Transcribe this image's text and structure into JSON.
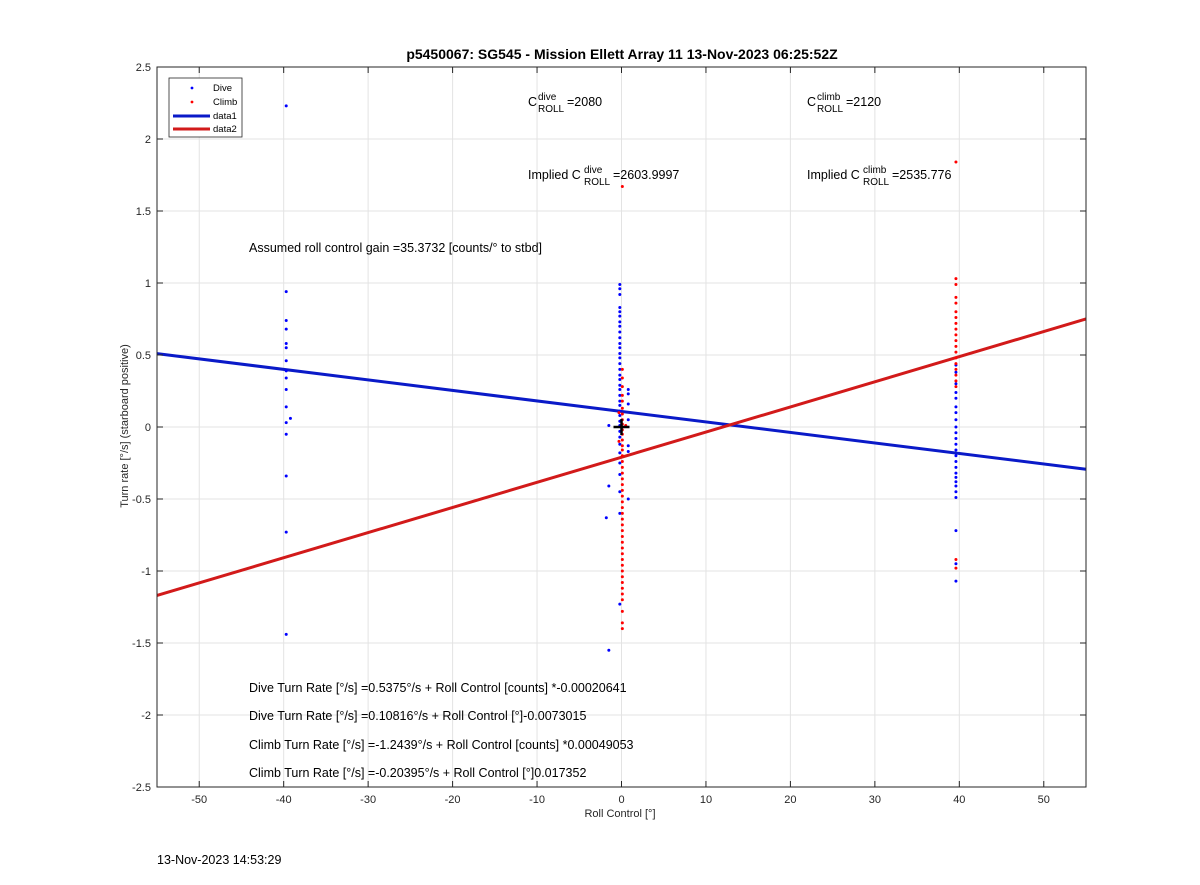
{
  "chart_data": {
    "type": "scatter",
    "title": "p5450067: SG545 - Mission Ellett Array 11 13-Nov-2023 06:25:52Z",
    "xlabel": "Roll Control [°]",
    "ylabel": "Turn rate [°/s] (starboard positive)",
    "xlim": [
      -55,
      55
    ],
    "ylim": [
      -2.5,
      2.5
    ],
    "xticks": [
      -50,
      -40,
      -30,
      -20,
      -10,
      0,
      10,
      20,
      30,
      40,
      50
    ],
    "xtick_labels": [
      "-50",
      "-40",
      "-30",
      "-20",
      "-10",
      "0",
      "10",
      "20",
      "30",
      "40",
      "50"
    ],
    "yticks": [
      -2.5,
      -2,
      -1.5,
      -1,
      -0.5,
      0,
      0.5,
      1,
      1.5,
      2,
      2.5
    ],
    "ytick_labels": [
      "-2.5",
      "-2",
      "-1.5",
      "-1",
      "-0.5",
      "0",
      "0.5",
      "1",
      "1.5",
      "2",
      "2.5"
    ],
    "grid": true,
    "legend_placement": "top-left",
    "legend": [
      {
        "label": "Dive",
        "marker": "dot",
        "color": "#0000ff"
      },
      {
        "label": "Climb",
        "marker": "dot",
        "color": "#ff0000"
      },
      {
        "label": "data1",
        "marker": "line",
        "color": "#0a1ac8"
      },
      {
        "label": "data2",
        "marker": "line",
        "color": "#d21a1a"
      }
    ],
    "series": [
      {
        "name": "Dive",
        "kind": "points",
        "color": "#0000ff",
        "points": [
          [
            -39.7,
            2.23
          ],
          [
            -39.7,
            0.94
          ],
          [
            -39.7,
            0.74
          ],
          [
            -39.7,
            0.68
          ],
          [
            -39.7,
            0.58
          ],
          [
            -39.7,
            0.55
          ],
          [
            -39.7,
            0.46
          ],
          [
            -39.7,
            0.39
          ],
          [
            -39.7,
            0.34
          ],
          [
            -39.7,
            0.26
          ],
          [
            -39.7,
            0.14
          ],
          [
            -39.2,
            0.06
          ],
          [
            -39.7,
            0.03
          ],
          [
            -39.7,
            -0.05
          ],
          [
            -39.7,
            -0.34
          ],
          [
            -39.7,
            -0.73
          ],
          [
            -39.7,
            -1.44
          ],
          [
            -0.2,
            0.99
          ],
          [
            -0.2,
            0.96
          ],
          [
            -0.2,
            0.92
          ],
          [
            -0.2,
            0.83
          ],
          [
            -0.2,
            0.8
          ],
          [
            -0.2,
            0.77
          ],
          [
            -0.2,
            0.73
          ],
          [
            -0.2,
            0.7
          ],
          [
            -0.2,
            0.66
          ],
          [
            -0.2,
            0.62
          ],
          [
            -0.2,
            0.58
          ],
          [
            -0.2,
            0.55
          ],
          [
            -0.2,
            0.51
          ],
          [
            -0.2,
            0.48
          ],
          [
            -0.2,
            0.44
          ],
          [
            -0.2,
            0.4
          ],
          [
            -0.2,
            0.36
          ],
          [
            -0.2,
            0.33
          ],
          [
            -0.2,
            0.29
          ],
          [
            -0.2,
            0.26
          ],
          [
            -0.2,
            0.22
          ],
          [
            -0.2,
            0.18
          ],
          [
            -0.2,
            0.15
          ],
          [
            -0.2,
            0.11
          ],
          [
            -0.2,
            0.08
          ],
          [
            -0.2,
            0.04
          ],
          [
            -0.2,
            0.01
          ],
          [
            -0.2,
            -0.03
          ],
          [
            -0.2,
            -0.07
          ],
          [
            -0.2,
            -0.12
          ],
          [
            -0.2,
            -0.18
          ],
          [
            -0.2,
            -0.25
          ],
          [
            -0.2,
            -0.33
          ],
          [
            -0.2,
            -0.45
          ],
          [
            -0.2,
            -0.6
          ],
          [
            -0.2,
            -1.23
          ],
          [
            -1.5,
            0.01
          ],
          [
            -1.5,
            -0.41
          ],
          [
            -1.8,
            -0.63
          ],
          [
            -1.5,
            -1.55
          ],
          [
            0.8,
            0.26
          ],
          [
            0.8,
            0.23
          ],
          [
            0.8,
            0.16
          ],
          [
            0.8,
            -0.13
          ],
          [
            0.8,
            -0.17
          ],
          [
            0.8,
            -0.5
          ],
          [
            0.8,
            0.05
          ],
          [
            39.6,
            0.43
          ],
          [
            39.6,
            0.38
          ],
          [
            39.6,
            0.3
          ],
          [
            39.6,
            0.24
          ],
          [
            39.6,
            0.2
          ],
          [
            39.6,
            0.14
          ],
          [
            39.6,
            0.1
          ],
          [
            39.6,
            0.05
          ],
          [
            39.6,
            0.0
          ],
          [
            39.6,
            -0.04
          ],
          [
            39.6,
            -0.08
          ],
          [
            39.6,
            -0.12
          ],
          [
            39.6,
            -0.16
          ],
          [
            39.6,
            -0.2
          ],
          [
            39.6,
            -0.24
          ],
          [
            39.6,
            -0.28
          ],
          [
            39.6,
            -0.32
          ],
          [
            39.6,
            -0.35
          ],
          [
            39.6,
            -0.38
          ],
          [
            39.6,
            -0.41
          ],
          [
            39.6,
            -0.45
          ],
          [
            39.6,
            -0.49
          ],
          [
            39.6,
            -0.72
          ],
          [
            39.6,
            -0.95
          ],
          [
            39.6,
            -1.07
          ]
        ]
      },
      {
        "name": "Climb",
        "kind": "points",
        "color": "#ff0000",
        "points": [
          [
            0.1,
            1.67
          ],
          [
            0.1,
            0.4
          ],
          [
            0.1,
            0.34
          ],
          [
            0.1,
            0.28
          ],
          [
            0.1,
            0.22
          ],
          [
            0.1,
            0.18
          ],
          [
            0.1,
            0.13
          ],
          [
            0.1,
            0.09
          ],
          [
            0.1,
            0.05
          ],
          [
            0.1,
            0.02
          ],
          [
            0.1,
            -0.02
          ],
          [
            0.1,
            -0.05
          ],
          [
            0.1,
            -0.09
          ],
          [
            0.1,
            -0.13
          ],
          [
            0.1,
            -0.16
          ],
          [
            0.1,
            -0.2
          ],
          [
            0.1,
            -0.24
          ],
          [
            0.1,
            -0.28
          ],
          [
            0.1,
            -0.32
          ],
          [
            0.1,
            -0.36
          ],
          [
            0.1,
            -0.4
          ],
          [
            0.1,
            -0.44
          ],
          [
            0.1,
            -0.48
          ],
          [
            0.1,
            -0.52
          ],
          [
            0.1,
            -0.56
          ],
          [
            0.1,
            -0.6
          ],
          [
            0.1,
            -0.64
          ],
          [
            0.1,
            -0.68
          ],
          [
            0.1,
            -0.72
          ],
          [
            0.1,
            -0.76
          ],
          [
            0.1,
            -0.8
          ],
          [
            0.1,
            -0.84
          ],
          [
            0.1,
            -0.88
          ],
          [
            0.1,
            -0.92
          ],
          [
            0.1,
            -0.96
          ],
          [
            0.1,
            -1.0
          ],
          [
            0.1,
            -1.04
          ],
          [
            0.1,
            -1.08
          ],
          [
            0.1,
            -1.12
          ],
          [
            0.1,
            -1.16
          ],
          [
            0.1,
            -1.2
          ],
          [
            0.1,
            -1.28
          ],
          [
            0.1,
            -1.36
          ],
          [
            0.1,
            -1.4
          ],
          [
            -0.3,
            0.1
          ],
          [
            -0.3,
            -0.1
          ],
          [
            0.5,
            0.01
          ],
          [
            39.6,
            1.84
          ],
          [
            39.6,
            1.03
          ],
          [
            39.6,
            0.99
          ],
          [
            39.6,
            0.9
          ],
          [
            39.6,
            0.86
          ],
          [
            39.6,
            0.8
          ],
          [
            39.6,
            0.76
          ],
          [
            39.6,
            0.72
          ],
          [
            39.6,
            0.68
          ],
          [
            39.6,
            0.64
          ],
          [
            39.6,
            0.6
          ],
          [
            39.6,
            0.56
          ],
          [
            39.6,
            0.52
          ],
          [
            39.6,
            0.48
          ],
          [
            39.6,
            0.44
          ],
          [
            39.6,
            0.4
          ],
          [
            39.6,
            0.36
          ],
          [
            39.6,
            0.32
          ],
          [
            39.6,
            0.28
          ],
          [
            39.6,
            -0.92
          ],
          [
            39.6,
            -0.98
          ]
        ]
      },
      {
        "name": "data1",
        "kind": "line",
        "color": "#0a1ac8",
        "x": [
          -55,
          55
        ],
        "y": [
          0.5097,
          -0.2935
        ]
      },
      {
        "name": "data2",
        "kind": "line",
        "color": "#d21a1a",
        "x": [
          -55,
          55
        ],
        "y": [
          -1.1699,
          0.7504
        ]
      }
    ],
    "marker": {
      "x": 0,
      "y": 0,
      "label": "+"
    },
    "annotations": {
      "c_dive_label": "C",
      "c_dive_sup": "dive",
      "c_dive_sub": "ROLL",
      "c_dive_value": "=2080",
      "c_climb_label": "C",
      "c_climb_sup": "climb",
      "c_climb_sub": "ROLL",
      "c_climb_value": "=2120",
      "implied_dive_prefix": "Implied C",
      "implied_dive_sup": "dive",
      "implied_dive_sub": "ROLL",
      "implied_dive_value": "=2603.9997",
      "implied_climb_prefix": "Implied C",
      "implied_climb_sup": "climb",
      "implied_climb_sub": "ROLL",
      "implied_climb_value": "=2535.776",
      "gain": "Assumed roll control gain =35.3732 [counts/° to stbd]",
      "eq1": "Dive Turn Rate [°/s] =0.5375°/s + Roll Control [counts] *-0.00020641",
      "eq2": "Dive Turn Rate [°/s] =0.10816°/s + Roll Control [°]-0.0073015",
      "eq3": "Climb Turn Rate [°/s] =-1.2439°/s + Roll Control [counts] *0.00049053",
      "eq4": "Climb Turn Rate [°/s] =-0.20395°/s + Roll Control [°]0.017352"
    }
  },
  "footer": {
    "timestamp": "13-Nov-2023 14:53:29"
  }
}
